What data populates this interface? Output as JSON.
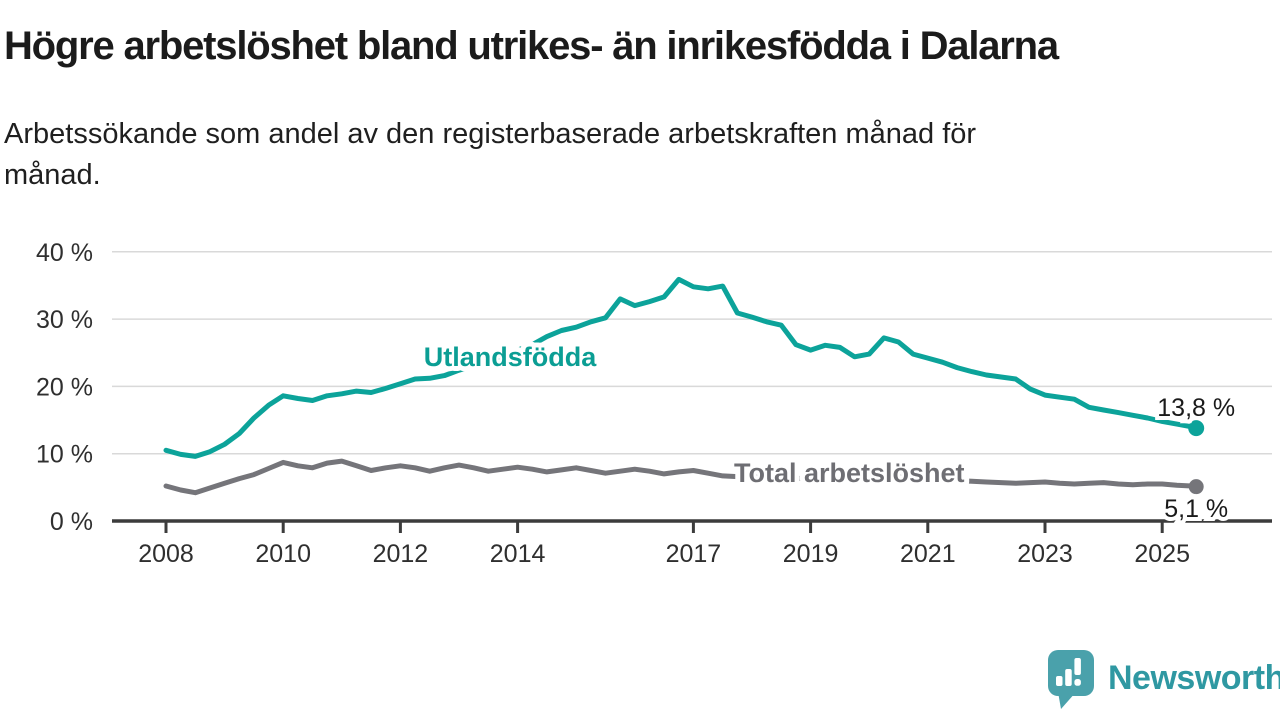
{
  "header": {
    "title": "Högre arbetslöshet bland utrikes- än inrikesfödda i Dalarna",
    "subtitle_lines": [
      "Arbetssökande som andel av den registerbaserade arbetskraften månad för",
      "månad."
    ]
  },
  "colors": {
    "accent_teal": "#0ca39a",
    "series_gray": "#75757a",
    "gray_label": "#6e6e73",
    "axis": "#3c3c3c",
    "gridline": "#d9d9d9",
    "tick_text": "#2f2f2f",
    "value_text": "#1a1a1a",
    "logo_teal": "#4aa1ab",
    "logo_text_teal": "#2f98a2"
  },
  "chart_data": {
    "type": "line",
    "title": "",
    "xlabel": "",
    "ylabel": "",
    "unit": "%",
    "grid": "horizontal",
    "x_axis": {
      "ticks": [
        2008,
        2010,
        2012,
        2014,
        2017,
        2019,
        2021,
        2023,
        2025
      ],
      "tick_labels": [
        "2008",
        "2010",
        "2012",
        "2014",
        "2017",
        "2019",
        "2021",
        "2023",
        "2025"
      ]
    },
    "y_axis": {
      "ticks": [
        0,
        10,
        20,
        30,
        40
      ],
      "tick_labels": [
        "0 %",
        "10 %",
        "20 %",
        "30 %",
        "40 %"
      ],
      "range": [
        0,
        42
      ]
    },
    "x_start": 2008.0,
    "x_step": 0.25,
    "x_last": 2025.58,
    "series": [
      {
        "name": "Utlandsfödda",
        "color": "#0ca39a",
        "label_color": "#0b9e94",
        "label_anchor": {
          "x": 2013.87,
          "y": 24.4
        },
        "end_label": "13,8 %",
        "end_value": 13.8,
        "values": [
          10.5,
          9.9,
          9.6,
          10.3,
          11.4,
          13.0,
          15.3,
          17.2,
          18.6,
          18.2,
          17.9,
          18.6,
          18.9,
          19.3,
          19.1,
          19.7,
          20.4,
          21.1,
          21.2,
          21.6,
          22.4,
          23.1,
          23.8,
          24.6,
          25.4,
          26.2,
          27.4,
          28.3,
          28.8,
          29.6,
          30.2,
          33.0,
          32.0,
          32.6,
          33.3,
          35.9,
          34.8,
          34.5,
          34.9,
          30.9,
          30.3,
          29.6,
          29.1,
          26.2,
          25.4,
          26.1,
          25.8,
          24.4,
          24.8,
          27.2,
          26.6,
          24.8,
          24.2,
          23.6,
          22.8,
          22.2,
          21.7,
          21.4,
          21.1,
          19.6,
          18.7,
          18.4,
          18.1,
          16.9,
          16.5,
          16.1,
          15.7,
          15.3,
          14.8,
          14.4,
          14.0,
          13.8
        ]
      },
      {
        "name": "Total arbetslöshet",
        "color": "#75757a",
        "label_color": "#6e6e73",
        "label_anchor": {
          "x": 2019.66,
          "y": 7.1
        },
        "end_label": "5,1 %",
        "end_value": 5.1,
        "values": [
          5.2,
          4.6,
          4.2,
          4.9,
          5.6,
          6.3,
          6.9,
          7.8,
          8.7,
          8.2,
          7.9,
          8.6,
          8.9,
          8.2,
          7.5,
          7.9,
          8.2,
          7.9,
          7.4,
          7.9,
          8.3,
          7.9,
          7.4,
          7.7,
          8.0,
          7.7,
          7.3,
          7.6,
          7.9,
          7.5,
          7.1,
          7.4,
          7.7,
          7.4,
          7.0,
          7.3,
          7.5,
          7.1,
          6.7,
          6.6,
          6.6,
          6.4,
          6.2,
          6.3,
          6.4,
          6.2,
          6.1,
          6.2,
          6.4,
          6.6,
          6.6,
          6.5,
          6.4,
          6.2,
          6.0,
          5.9,
          5.8,
          5.7,
          5.6,
          5.7,
          5.8,
          5.6,
          5.5,
          5.6,
          5.7,
          5.5,
          5.4,
          5.5,
          5.5,
          5.3,
          5.2,
          5.1
        ]
      }
    ]
  },
  "footer": {
    "brand": "Newsworthy"
  }
}
